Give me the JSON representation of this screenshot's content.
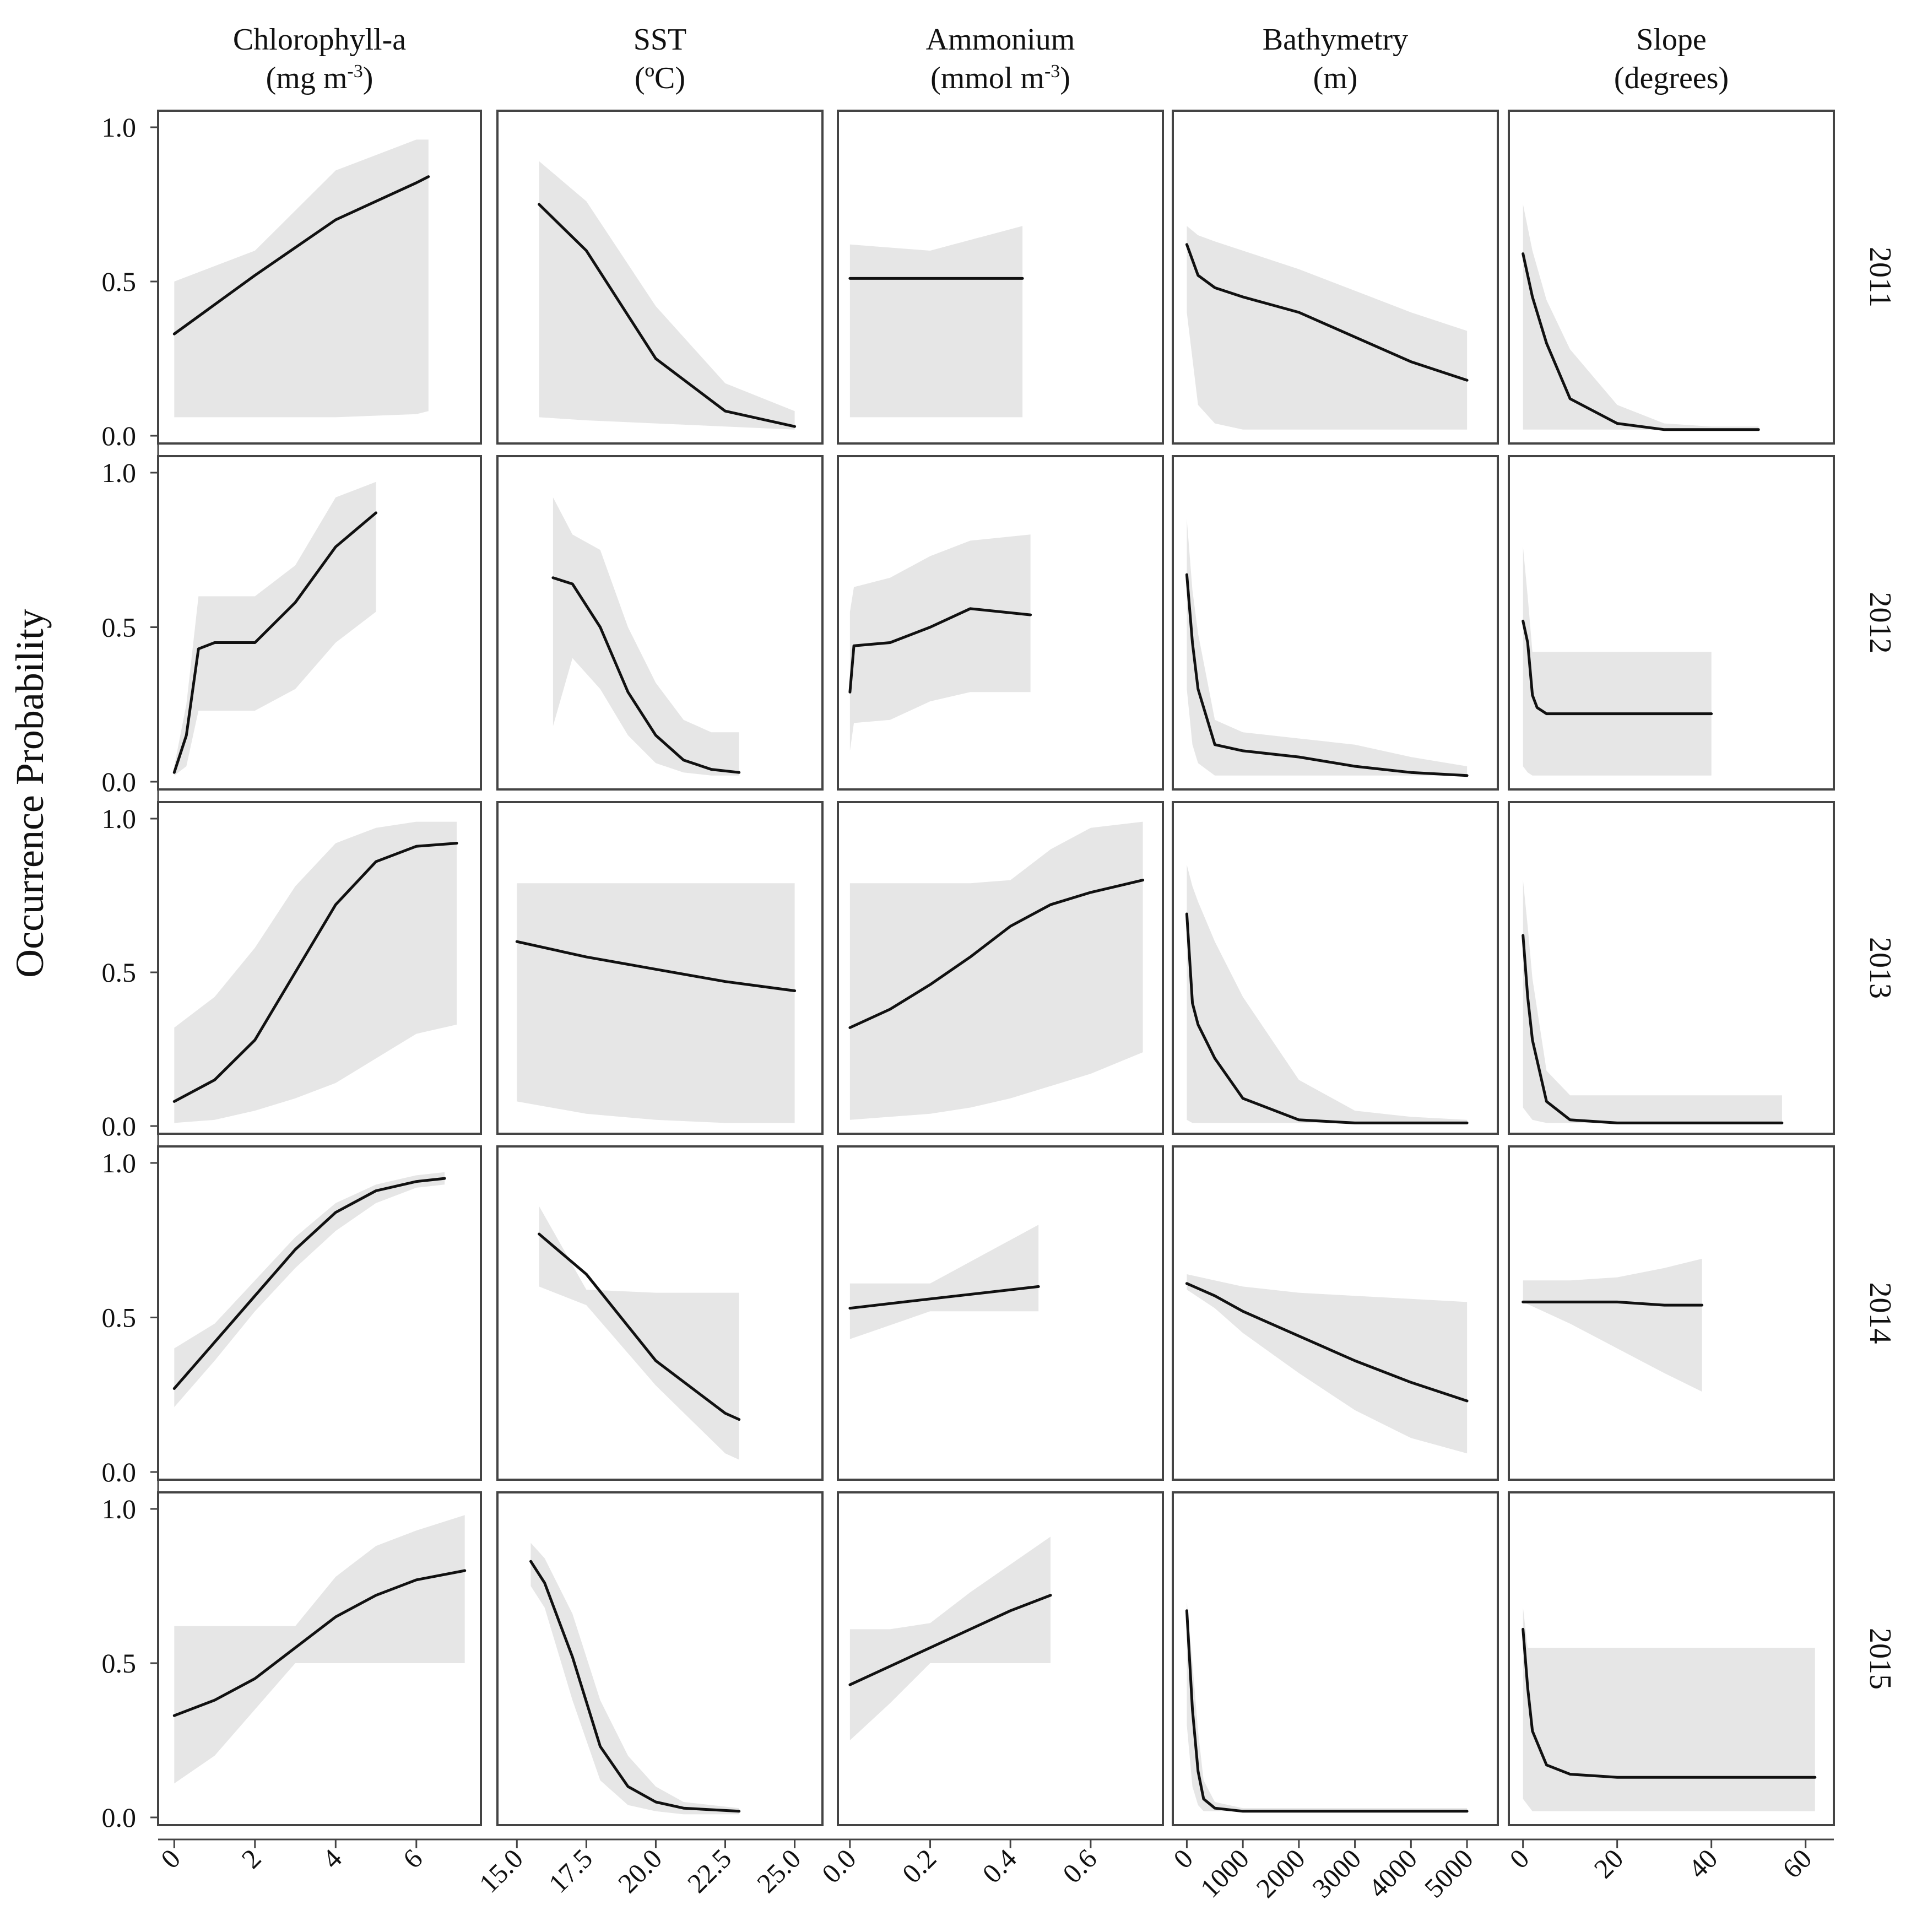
{
  "chart_data": {
    "type": "line",
    "title": "",
    "ylabel": "Occurrence Probability",
    "ylim": [
      0,
      1
    ],
    "y_ticks": [
      "0.0",
      "0.5",
      "1.0"
    ],
    "columns": [
      {
        "name": "Chlorophyll-a",
        "unit_main": "(mg m",
        "unit_sup": "-3",
        "unit_tail": ")",
        "xlim": [
          -0.4,
          7.6
        ],
        "x_ticks": [
          0,
          2,
          4,
          6
        ],
        "x_tick_labels": [
          "0",
          "2",
          "4",
          "6"
        ]
      },
      {
        "name": "SST",
        "unit_main": "(ºC)",
        "unit_sup": "",
        "unit_tail": "",
        "xlim": [
          14.3,
          26.0
        ],
        "x_ticks": [
          15,
          17.5,
          20,
          22.5,
          25
        ],
        "x_tick_labels": [
          "15.0",
          "17.5",
          "20.0",
          "22.5",
          "25.0"
        ]
      },
      {
        "name": "Ammonium",
        "unit_main": "(mmol m",
        "unit_sup": "-3",
        "unit_tail": ")",
        "xlim": [
          -0.03,
          0.78
        ],
        "x_ticks": [
          0,
          0.2,
          0.4,
          0.6
        ],
        "x_tick_labels": [
          "0.0",
          "0.2",
          "0.4",
          "0.6"
        ]
      },
      {
        "name": "Bathymetry",
        "unit_main": "(m)",
        "unit_sup": "",
        "unit_tail": "",
        "xlim": [
          -250,
          5550
        ],
        "x_ticks": [
          0,
          1000,
          2000,
          3000,
          4000,
          5000
        ],
        "x_tick_labels": [
          "0",
          "1000",
          "2000",
          "3000",
          "4000",
          "5000"
        ]
      },
      {
        "name": "Slope",
        "unit_main": "(degrees)",
        "unit_sup": "",
        "unit_tail": "",
        "xlim": [
          -3,
          66
        ],
        "x_ticks": [
          0,
          20,
          40,
          60
        ],
        "x_tick_labels": [
          "0",
          "20",
          "40",
          "60"
        ]
      }
    ],
    "rows": [
      "2011",
      "2012",
      "2013",
      "2014",
      "2015"
    ],
    "panels": [
      [
        {
          "x": [
            0,
            2,
            4,
            6,
            6.3
          ],
          "y": [
            0.33,
            0.52,
            0.7,
            0.82,
            0.84
          ],
          "lower": [
            0.06,
            0.06,
            0.06,
            0.07,
            0.08
          ],
          "upper": [
            0.5,
            0.6,
            0.86,
            0.96,
            0.96
          ]
        },
        {
          "x": [
            15.8,
            17.5,
            20,
            22.5,
            25
          ],
          "y": [
            0.75,
            0.6,
            0.25,
            0.08,
            0.03
          ],
          "lower": [
            0.06,
            0.05,
            0.04,
            0.03,
            0.02
          ],
          "upper": [
            0.89,
            0.76,
            0.42,
            0.17,
            0.08
          ]
        },
        {
          "x": [
            0,
            0.2,
            0.43
          ],
          "y": [
            0.51,
            0.51,
            0.51
          ],
          "lower": [
            0.06,
            0.06,
            0.06
          ],
          "upper": [
            0.62,
            0.6,
            0.68
          ]
        },
        {
          "x": [
            0,
            200,
            500,
            1000,
            2000,
            3000,
            4000,
            5000
          ],
          "y": [
            0.62,
            0.52,
            0.48,
            0.45,
            0.4,
            0.32,
            0.24,
            0.18
          ],
          "lower": [
            0.4,
            0.1,
            0.04,
            0.02,
            0.02,
            0.02,
            0.02,
            0.02
          ],
          "upper": [
            0.68,
            0.65,
            0.63,
            0.6,
            0.54,
            0.47,
            0.4,
            0.34
          ]
        },
        {
          "x": [
            0,
            2,
            5,
            10,
            20,
            30,
            40,
            50
          ],
          "y": [
            0.59,
            0.45,
            0.3,
            0.12,
            0.04,
            0.02,
            0.02,
            0.02
          ],
          "lower": [
            0.02,
            0.02,
            0.02,
            0.02,
            0.02,
            0.02,
            0.02,
            0.02
          ],
          "upper": [
            0.75,
            0.6,
            0.44,
            0.28,
            0.1,
            0.04,
            0.03,
            0.03
          ]
        }
      ],
      [
        {
          "x": [
            0,
            0.3,
            0.6,
            1.0,
            1.5,
            2.0,
            3.0,
            4.0,
            5.0
          ],
          "y": [
            0.03,
            0.15,
            0.43,
            0.45,
            0.45,
            0.45,
            0.58,
            0.76,
            0.87
          ],
          "lower": [
            0.02,
            0.05,
            0.23,
            0.23,
            0.23,
            0.23,
            0.3,
            0.45,
            0.55
          ],
          "upper": [
            0.05,
            0.25,
            0.6,
            0.6,
            0.6,
            0.6,
            0.7,
            0.92,
            0.97
          ]
        },
        {
          "x": [
            16.3,
            17.0,
            18.0,
            19.0,
            20.0,
            21.0,
            22.0,
            23.0
          ],
          "y": [
            0.66,
            0.64,
            0.5,
            0.29,
            0.15,
            0.07,
            0.04,
            0.03
          ],
          "lower": [
            0.18,
            0.4,
            0.3,
            0.15,
            0.06,
            0.03,
            0.02,
            0.02
          ],
          "upper": [
            0.92,
            0.8,
            0.75,
            0.5,
            0.32,
            0.2,
            0.16,
            0.16
          ]
        },
        {
          "x": [
            0,
            0.01,
            0.1,
            0.2,
            0.3,
            0.45
          ],
          "y": [
            0.29,
            0.44,
            0.45,
            0.5,
            0.56,
            0.54
          ],
          "lower": [
            0.1,
            0.19,
            0.2,
            0.26,
            0.29,
            0.29
          ],
          "upper": [
            0.55,
            0.63,
            0.66,
            0.73,
            0.78,
            0.8
          ]
        },
        {
          "x": [
            0,
            100,
            200,
            500,
            1000,
            2000,
            3000,
            4000,
            5000
          ],
          "y": [
            0.67,
            0.45,
            0.3,
            0.12,
            0.1,
            0.08,
            0.05,
            0.03,
            0.02
          ],
          "lower": [
            0.3,
            0.12,
            0.06,
            0.02,
            0.02,
            0.02,
            0.02,
            0.02,
            0.02
          ],
          "upper": [
            0.85,
            0.62,
            0.48,
            0.2,
            0.16,
            0.14,
            0.12,
            0.08,
            0.05
          ]
        },
        {
          "x": [
            0,
            1,
            2,
            3,
            5,
            10,
            20,
            40
          ],
          "y": [
            0.52,
            0.45,
            0.28,
            0.24,
            0.22,
            0.22,
            0.22,
            0.22
          ],
          "lower": [
            0.05,
            0.03,
            0.02,
            0.02,
            0.02,
            0.02,
            0.02,
            0.02
          ],
          "upper": [
            0.76,
            0.6,
            0.42,
            0.42,
            0.42,
            0.42,
            0.42,
            0.42
          ]
        }
      ],
      [
        {
          "x": [
            0,
            1,
            2,
            3,
            4,
            5,
            6,
            7
          ],
          "y": [
            0.08,
            0.15,
            0.28,
            0.5,
            0.72,
            0.86,
            0.91,
            0.92
          ],
          "lower": [
            0.01,
            0.02,
            0.05,
            0.09,
            0.14,
            0.22,
            0.3,
            0.33
          ],
          "upper": [
            0.32,
            0.42,
            0.58,
            0.78,
            0.92,
            0.97,
            0.99,
            0.99
          ]
        },
        {
          "x": [
            15,
            17.5,
            20,
            22.5,
            25
          ],
          "y": [
            0.6,
            0.55,
            0.51,
            0.47,
            0.44
          ],
          "lower": [
            0.08,
            0.04,
            0.02,
            0.01,
            0.01
          ],
          "upper": [
            0.79,
            0.79,
            0.79,
            0.79,
            0.79
          ]
        },
        {
          "x": [
            0,
            0.1,
            0.2,
            0.3,
            0.4,
            0.5,
            0.6,
            0.73
          ],
          "y": [
            0.32,
            0.38,
            0.46,
            0.55,
            0.65,
            0.72,
            0.76,
            0.8
          ],
          "lower": [
            0.02,
            0.03,
            0.04,
            0.06,
            0.09,
            0.13,
            0.17,
            0.24
          ],
          "upper": [
            0.79,
            0.79,
            0.79,
            0.79,
            0.8,
            0.9,
            0.97,
            0.99
          ]
        },
        {
          "x": [
            0,
            100,
            200,
            500,
            1000,
            2000,
            3000,
            4000,
            5000
          ],
          "y": [
            0.69,
            0.4,
            0.33,
            0.22,
            0.09,
            0.02,
            0.01,
            0.01,
            0.01
          ],
          "lower": [
            0.02,
            0.01,
            0.01,
            0.01,
            0.01,
            0.01,
            0.01,
            0.01,
            0.01
          ],
          "upper": [
            0.85,
            0.78,
            0.73,
            0.6,
            0.42,
            0.15,
            0.05,
            0.03,
            0.02
          ]
        },
        {
          "x": [
            0,
            1,
            2,
            5,
            10,
            20,
            40,
            55
          ],
          "y": [
            0.62,
            0.42,
            0.28,
            0.08,
            0.02,
            0.01,
            0.01,
            0.01
          ],
          "lower": [
            0.06,
            0.04,
            0.02,
            0.01,
            0.01,
            0.01,
            0.01,
            0.01
          ],
          "upper": [
            0.8,
            0.65,
            0.48,
            0.18,
            0.1,
            0.1,
            0.1,
            0.1
          ]
        }
      ],
      [
        {
          "x": [
            0,
            1,
            2,
            3,
            4,
            5,
            6,
            6.7
          ],
          "y": [
            0.27,
            0.42,
            0.57,
            0.72,
            0.84,
            0.91,
            0.94,
            0.95
          ],
          "lower": [
            0.21,
            0.36,
            0.52,
            0.66,
            0.78,
            0.87,
            0.92,
            0.93
          ],
          "upper": [
            0.4,
            0.48,
            0.62,
            0.76,
            0.87,
            0.93,
            0.96,
            0.97
          ]
        },
        {
          "x": [
            15.8,
            17.5,
            20,
            22.5,
            23.0
          ],
          "y": [
            0.77,
            0.64,
            0.36,
            0.19,
            0.17
          ],
          "lower": [
            0.6,
            0.54,
            0.28,
            0.06,
            0.04
          ],
          "upper": [
            0.86,
            0.59,
            0.58,
            0.58,
            0.58
          ]
        },
        {
          "x": [
            0,
            0.2,
            0.47
          ],
          "y": [
            0.53,
            0.56,
            0.6
          ],
          "lower": [
            0.43,
            0.52,
            0.52
          ],
          "upper": [
            0.61,
            0.61,
            0.8
          ]
        },
        {
          "x": [
            0,
            500,
            1000,
            2000,
            3000,
            4000,
            5000
          ],
          "y": [
            0.61,
            0.57,
            0.52,
            0.44,
            0.36,
            0.29,
            0.23
          ],
          "lower": [
            0.59,
            0.53,
            0.45,
            0.32,
            0.2,
            0.11,
            0.06
          ],
          "upper": [
            0.64,
            0.62,
            0.6,
            0.58,
            0.57,
            0.56,
            0.55
          ]
        },
        {
          "x": [
            0,
            10,
            20,
            30,
            38
          ],
          "y": [
            0.55,
            0.55,
            0.55,
            0.54,
            0.54
          ],
          "lower": [
            0.55,
            0.48,
            0.4,
            0.32,
            0.26
          ],
          "upper": [
            0.62,
            0.62,
            0.63,
            0.66,
            0.69
          ]
        }
      ],
      [
        {
          "x": [
            0,
            1,
            2,
            3,
            4,
            5,
            6,
            7.2
          ],
          "y": [
            0.33,
            0.38,
            0.45,
            0.55,
            0.65,
            0.72,
            0.77,
            0.8
          ],
          "lower": [
            0.11,
            0.2,
            0.35,
            0.5,
            0.5,
            0.5,
            0.5,
            0.5
          ],
          "upper": [
            0.62,
            0.62,
            0.62,
            0.62,
            0.78,
            0.88,
            0.93,
            0.98
          ]
        },
        {
          "x": [
            15.5,
            16.0,
            17.0,
            18.0,
            19.0,
            20.0,
            21.0,
            23.0
          ],
          "y": [
            0.83,
            0.76,
            0.52,
            0.23,
            0.1,
            0.05,
            0.03,
            0.02
          ],
          "lower": [
            0.75,
            0.68,
            0.38,
            0.12,
            0.04,
            0.02,
            0.01,
            0.01
          ],
          "upper": [
            0.89,
            0.84,
            0.66,
            0.38,
            0.2,
            0.1,
            0.05,
            0.03
          ]
        },
        {
          "x": [
            0,
            0.1,
            0.2,
            0.3,
            0.4,
            0.5
          ],
          "y": [
            0.43,
            0.49,
            0.55,
            0.61,
            0.67,
            0.72
          ],
          "lower": [
            0.25,
            0.37,
            0.5,
            0.5,
            0.5,
            0.5
          ],
          "upper": [
            0.61,
            0.61,
            0.63,
            0.73,
            0.82,
            0.91
          ]
        },
        {
          "x": [
            0,
            100,
            200,
            300,
            500,
            1000,
            2000,
            5000
          ],
          "y": [
            0.67,
            0.35,
            0.15,
            0.06,
            0.03,
            0.02,
            0.02,
            0.02
          ],
          "lower": [
            0.3,
            0.1,
            0.04,
            0.02,
            0.02,
            0.02,
            0.02,
            0.02
          ],
          "upper": [
            0.7,
            0.5,
            0.28,
            0.12,
            0.05,
            0.03,
            0.03,
            0.03
          ]
        },
        {
          "x": [
            0,
            1,
            2,
            5,
            10,
            20,
            40,
            62
          ],
          "y": [
            0.61,
            0.42,
            0.28,
            0.17,
            0.14,
            0.13,
            0.13,
            0.13
          ],
          "lower": [
            0.06,
            0.04,
            0.02,
            0.02,
            0.02,
            0.02,
            0.02,
            0.02
          ],
          "upper": [
            0.68,
            0.55,
            0.55,
            0.55,
            0.55,
            0.55,
            0.55,
            0.55
          ]
        }
      ]
    ]
  }
}
